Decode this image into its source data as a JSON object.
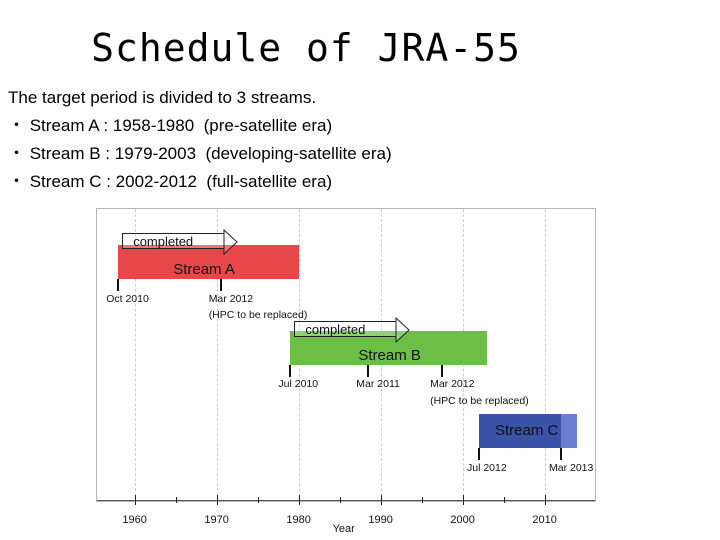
{
  "title": "Schedule of JRA-55",
  "intro": {
    "line1": "The target period is divided to 3 streams.",
    "line2": "・ Stream A : 1958-1980  (pre-satellite era)",
    "line3": "・ Stream B : 1979-2003  (developing-satellite era)",
    "line4": "・ Stream C : 2002-2012  (full-satellite era)"
  },
  "chart_data": {
    "type": "gantt",
    "xlabel": "Year",
    "xlim": [
      1957,
      2014
    ],
    "xticks": [
      "1960",
      "1970",
      "1980",
      "1990",
      "2000",
      "2010"
    ],
    "grid": true,
    "streams": [
      {
        "name": "Stream A",
        "start": 1958,
        "end": 1980,
        "color": "#e8474a",
        "status": "completed",
        "milestones": [
          {
            "label": "Oct 2010",
            "at": 1958,
            "note": ""
          },
          {
            "label": "Mar 2012",
            "at": 1970.5,
            "note": "(HPC to be replaced)"
          }
        ]
      },
      {
        "name": "Stream B",
        "start": 1979,
        "end": 2003,
        "color": "#6cbf46",
        "status": "completed",
        "milestones": [
          {
            "label": "Jul 2010",
            "at": 1979,
            "note": ""
          },
          {
            "label": "Mar 2011",
            "at": 1988.5,
            "note": ""
          },
          {
            "label": "Mar 2012",
            "at": 1997.5,
            "note": "(HPC to be replaced)"
          }
        ]
      },
      {
        "name": "Stream C",
        "start": 2002,
        "end": 2014,
        "color": "#3a53a8",
        "color_extension": "#6a7ed0",
        "extension_start": 2012,
        "status": "",
        "milestones": [
          {
            "label": "Jul 2012",
            "at": 2002,
            "note": ""
          },
          {
            "label": "Mar 2013",
            "at": 2012,
            "note": ""
          }
        ]
      }
    ]
  }
}
